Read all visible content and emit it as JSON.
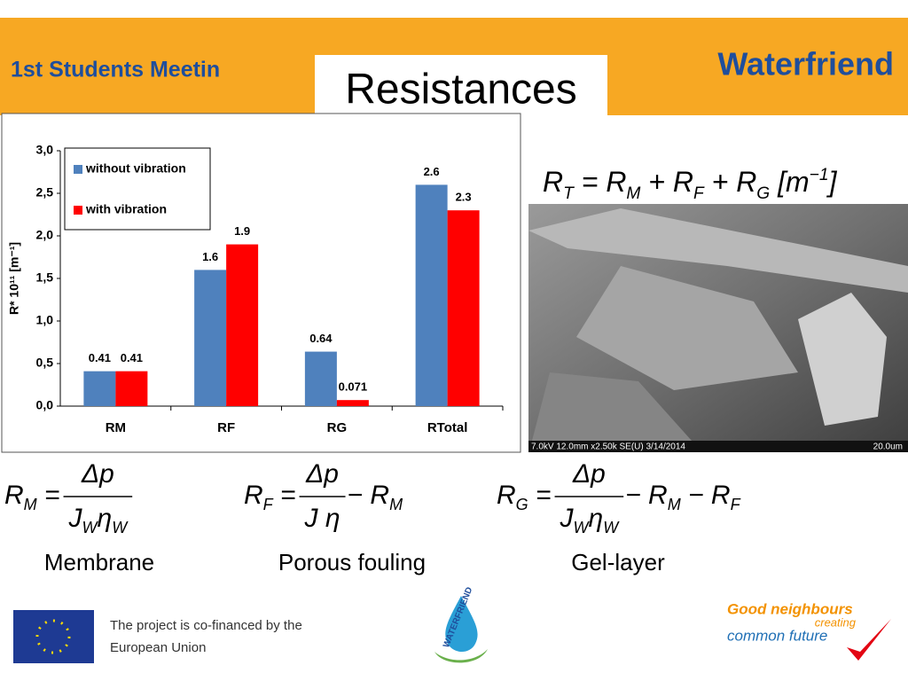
{
  "header": {
    "meeting": "1st Students Meetin",
    "title": "Resistances",
    "brand": "Waterfriend"
  },
  "chart_data": {
    "type": "bar",
    "ylabel": "R* 10¹¹ [m⁻¹]",
    "categories": [
      "RM",
      "RF",
      "RG",
      "RTotal"
    ],
    "series": [
      {
        "name": "without vibration",
        "color": "#4f81bd",
        "values": [
          0.41,
          1.6,
          0.64,
          2.6
        ]
      },
      {
        "name": "with vibration",
        "color": "#ff0000",
        "values": [
          0.41,
          1.9,
          0.071,
          2.3
        ]
      }
    ],
    "ylim": [
      0,
      3
    ],
    "yticks": [
      {
        "value": 0,
        "label": "0,0"
      },
      {
        "value": 0.5,
        "label": "0,5"
      },
      {
        "value": 1,
        "label": "1,0"
      },
      {
        "value": 1.5,
        "label": "1,5"
      },
      {
        "value": 2,
        "label": "2,0"
      },
      {
        "value": 2.5,
        "label": "2,5"
      },
      {
        "value": 3,
        "label": "3,0"
      }
    ],
    "legend": "upper left"
  },
  "total_formula": [
    {
      "t": "R"
    },
    {
      "s": "T"
    },
    {
      "t": " = "
    },
    {
      "t": "R"
    },
    {
      "s": "M"
    },
    {
      "t": " + "
    },
    {
      "t": "R"
    },
    {
      "s": "F"
    },
    {
      "t": " + "
    },
    {
      "t": "R"
    },
    {
      "s": "G"
    },
    {
      "t": "   [m"
    },
    {
      "p": "−1"
    },
    {
      "t": "]"
    }
  ],
  "image_caption": {
    "left": "7.0kV 12.0mm x2.50k SE(U) 3/14/2014",
    "right": "20.0um"
  },
  "formulas": [
    {
      "lhs": [
        {
          "t": "R"
        },
        {
          "s": "M"
        },
        {
          "t": " = "
        }
      ],
      "num": [
        {
          "t": "Δp"
        }
      ],
      "den": [
        {
          "t": "J"
        },
        {
          "s": "W"
        },
        {
          "t": "η"
        },
        {
          "s": "W"
        }
      ],
      "rest": [],
      "label": "Membrane"
    },
    {
      "lhs": [
        {
          "t": "R"
        },
        {
          "s": "F"
        },
        {
          "t": " = "
        }
      ],
      "num": [
        {
          "t": "Δp"
        }
      ],
      "den": [
        {
          "t": "J η"
        }
      ],
      "rest": [
        {
          "t": " − R"
        },
        {
          "s": "M"
        }
      ],
      "label": "Porous fouling"
    },
    {
      "lhs": [
        {
          "t": "R"
        },
        {
          "s": "G"
        },
        {
          "t": " = "
        }
      ],
      "num": [
        {
          "t": "Δp"
        }
      ],
      "den": [
        {
          "t": "J"
        },
        {
          "s": "W"
        },
        {
          "t": "η"
        },
        {
          "s": "W"
        }
      ],
      "rest": [
        {
          "t": " − R"
        },
        {
          "s": "M"
        },
        {
          "t": " − R"
        },
        {
          "s": "F"
        }
      ],
      "label": "Gel-layer"
    }
  ],
  "footer": {
    "eu_line1": "The project is co-financed by the",
    "eu_line2": "European Union",
    "logo": "WATERFRIEND",
    "slogan1": "Good neighbours",
    "slogan2": "creating",
    "slogan3": "common future"
  }
}
